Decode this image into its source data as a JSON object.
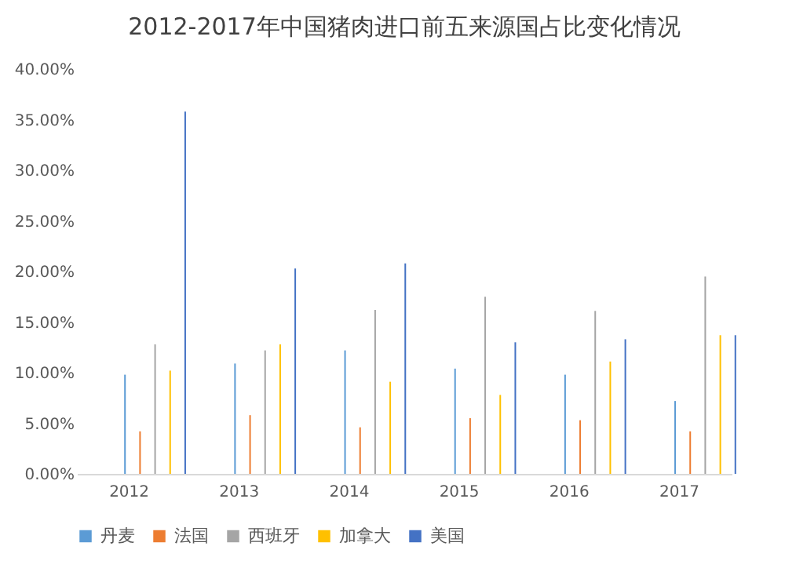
{
  "chart_data": {
    "type": "bar",
    "title": "2012-2017年中国猪肉进口前五来源国占比变化情况",
    "categories": [
      "2012",
      "2013",
      "2014",
      "2015",
      "2016",
      "2017"
    ],
    "series": [
      {
        "name": "丹麦",
        "color": "#5b9bd5",
        "values": [
          9.8,
          10.9,
          12.2,
          10.4,
          9.8,
          7.2
        ]
      },
      {
        "name": "法国",
        "color": "#ed7d31",
        "values": [
          4.2,
          5.8,
          4.6,
          5.5,
          5.3,
          4.2
        ]
      },
      {
        "name": "西班牙",
        "color": "#a5a5a5",
        "values": [
          12.8,
          12.2,
          16.2,
          17.5,
          16.1,
          19.5
        ]
      },
      {
        "name": "加拿大",
        "color": "#ffc000",
        "values": [
          10.2,
          12.8,
          9.1,
          7.8,
          11.1,
          13.7
        ]
      },
      {
        "name": "美国",
        "color": "#4472c4",
        "values": [
          35.8,
          20.3,
          20.8,
          13.0,
          13.3,
          13.7
        ]
      }
    ],
    "ylim": [
      0,
      40
    ],
    "yticks": [
      {
        "value": 0,
        "label": "0.00%"
      },
      {
        "value": 5,
        "label": "5.00%"
      },
      {
        "value": 10,
        "label": "10.00%"
      },
      {
        "value": 15,
        "label": "15.00%"
      },
      {
        "value": 20,
        "label": "20.00%"
      },
      {
        "value": 25,
        "label": "25.00%"
      },
      {
        "value": 30,
        "label": "30.00%"
      },
      {
        "value": 35,
        "label": "35.00%"
      },
      {
        "value": 40,
        "label": "40.00%"
      }
    ],
    "grid": false,
    "legend": "bottom"
  }
}
